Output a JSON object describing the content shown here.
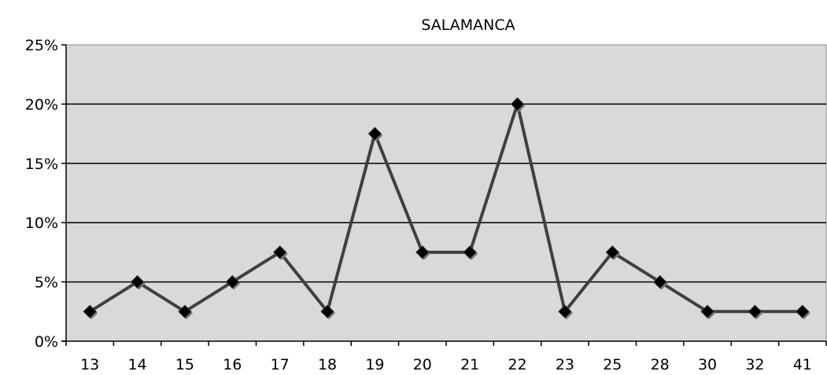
{
  "chart_data": {
    "type": "line",
    "title": "SALAMANCA",
    "xlabel": "",
    "ylabel": "",
    "categories": [
      "13",
      "14",
      "15",
      "16",
      "17",
      "18",
      "19",
      "20",
      "21",
      "22",
      "23",
      "25",
      "28",
      "30",
      "32",
      "41"
    ],
    "series": [
      {
        "values": [
          2.5,
          5,
          2.5,
          5,
          7.5,
          2.5,
          17.5,
          7.5,
          7.5,
          20,
          2.5,
          7.5,
          5,
          2.5,
          2.5,
          2.5
        ],
        "color": "#404040",
        "marker": "diamond"
      }
    ],
    "ylim": [
      0,
      25
    ],
    "yticks": [
      0,
      5,
      10,
      15,
      20,
      25
    ],
    "ytick_labels": [
      "0%",
      "5%",
      "10%",
      "15%",
      "20%",
      "25%"
    ],
    "grid": "horizontal",
    "legend": "none",
    "plot_background": "#d9d9d9",
    "line_color": "#404040",
    "marker_color": "#000000"
  }
}
